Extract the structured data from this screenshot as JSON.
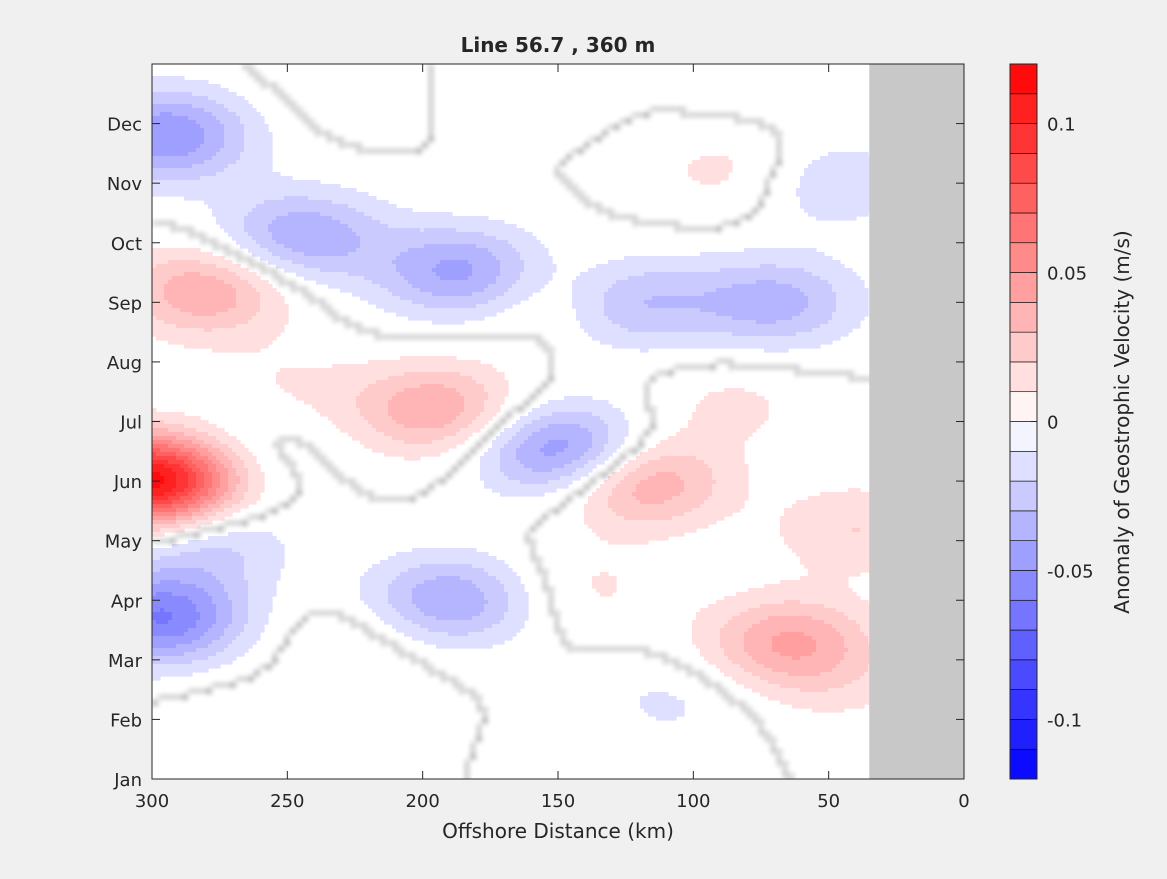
{
  "chart_data": {
    "type": "heatmap",
    "title": "Line 56.7 , 360 m",
    "xlabel": "Offshore Distance (km)",
    "ylabel": "",
    "xlim": [
      300,
      0
    ],
    "x_reversed": true,
    "x_ticks": [
      300,
      250,
      200,
      150,
      100,
      50,
      0
    ],
    "y_ticks": [
      "Jan",
      "Feb",
      "Mar",
      "Apr",
      "May",
      "Jun",
      "Jul",
      "Aug",
      "Sep",
      "Oct",
      "Nov",
      "Dec"
    ],
    "no_data_region_km": [
      0,
      35
    ],
    "no_data_color": "#c8c8c8",
    "colorbar": {
      "label": "Anomaly of Geostrophic Velocity (m/s)",
      "range": [
        -0.12,
        0.12
      ],
      "levels": 24,
      "tick_values": [
        -0.1,
        -0.05,
        0,
        0.05,
        0.1
      ],
      "tick_labels": [
        "-0.1",
        "-0.05",
        "0",
        "0.05",
        "0.1"
      ],
      "negative_color": "#0000ff",
      "positive_color": "#ff0000",
      "zero_color": "#ffffff"
    },
    "anomaly_features": [
      {
        "x_km": 300,
        "month": 5.0,
        "value": 0.12
      },
      {
        "x_km": 280,
        "month": 8.2,
        "value": 0.04
      },
      {
        "x_km": 297,
        "month": 2.7,
        "value": -0.06
      },
      {
        "x_km": 295,
        "month": 10.8,
        "value": -0.05
      },
      {
        "x_km": 245,
        "month": 9.1,
        "value": -0.04
      },
      {
        "x_km": 185,
        "month": 8.5,
        "value": -0.045
      },
      {
        "x_km": 195,
        "month": 6.2,
        "value": 0.04
      },
      {
        "x_km": 148,
        "month": 5.5,
        "value": -0.055
      },
      {
        "x_km": 120,
        "month": 5.0,
        "value": 0.045
      },
      {
        "x_km": 125,
        "month": 8.0,
        "value": -0.035
      },
      {
        "x_km": 70,
        "month": 8.0,
        "value": -0.035
      },
      {
        "x_km": 65,
        "month": 2.3,
        "value": 0.04
      },
      {
        "x_km": 190,
        "month": 3.0,
        "value": -0.04
      },
      {
        "x_km": 150,
        "month": 8.1,
        "value": 0.02
      },
      {
        "x_km": 85,
        "month": 10.2,
        "value": 0.015
      },
      {
        "x_km": 50,
        "month": 10.0,
        "value": -0.02
      },
      {
        "x_km": 40,
        "month": 4.2,
        "value": 0.02
      },
      {
        "x_km": 225,
        "month": 2.2,
        "value": 0.012
      },
      {
        "x_km": 140,
        "month": 3.2,
        "value": 0.012
      },
      {
        "x_km": 108,
        "month": 1.3,
        "value": -0.012
      },
      {
        "x_km": 270,
        "month": 0.8,
        "value": 0.01
      },
      {
        "x_km": 268,
        "month": 5.5,
        "value": -0.012
      },
      {
        "x_km": 280,
        "month": 4.0,
        "value": -0.025
      },
      {
        "x_km": 170,
        "month": 11.8,
        "value": -0.01
      },
      {
        "x_km": 75,
        "month": 11.8,
        "value": -0.008
      },
      {
        "x_km": 45,
        "month": 1.6,
        "value": 0.01
      },
      {
        "x_km": 85,
        "month": 6.3,
        "value": 0.012
      },
      {
        "x_km": 250,
        "month": 6.6,
        "value": 0.01
      },
      {
        "x_km": 225,
        "month": 11.8,
        "value": 0.01
      }
    ]
  }
}
